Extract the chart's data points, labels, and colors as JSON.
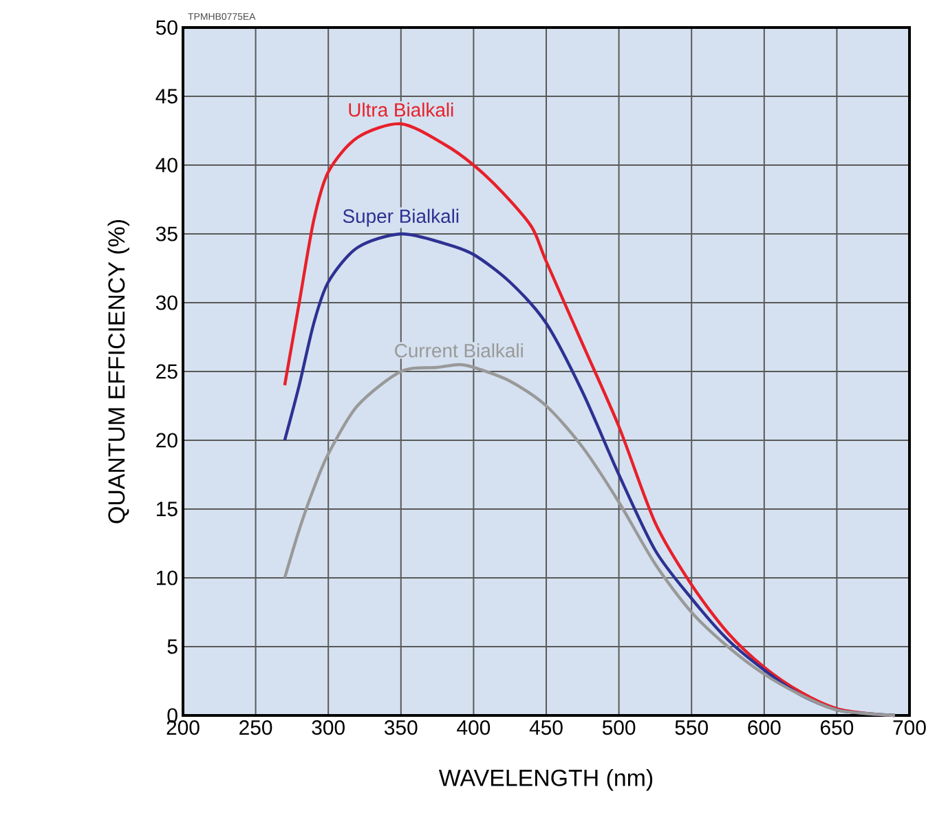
{
  "chart_data": {
    "type": "line",
    "xlabel": "WAVELENGTH (nm)",
    "ylabel": "QUANTUM EFFICIENCY (%)",
    "annotations": [
      "TPMHB0775EA"
    ],
    "xlim": [
      200,
      700
    ],
    "ylim": [
      0,
      50
    ],
    "xticks": [
      200,
      250,
      300,
      350,
      400,
      450,
      500,
      550,
      600,
      650,
      700
    ],
    "yticks": [
      0,
      5,
      10,
      15,
      20,
      25,
      30,
      35,
      40,
      45,
      50
    ],
    "grid": true,
    "marker": "none",
    "line_style": "solid",
    "series": [
      {
        "name": "Ultra Bialkali",
        "color": "#e8202a",
        "x": [
          270,
          280,
          290,
          300,
          320,
          350,
          380,
          400,
          420,
          440,
          450,
          475,
          500,
          525,
          550,
          575,
          600,
          625,
          650,
          675,
          690
        ],
        "values": [
          24,
          30,
          36,
          39.5,
          42,
          43,
          41.5,
          40,
          38,
          35.5,
          33,
          27,
          21,
          14,
          9.5,
          6,
          3.5,
          1.7,
          0.5,
          0.1,
          0
        ]
      },
      {
        "name": "Super Bialkali",
        "color": "#2e3192",
        "x": [
          270,
          280,
          290,
          300,
          320,
          350,
          380,
          400,
          425,
          450,
          475,
          500,
          525,
          550,
          575,
          600,
          625,
          650,
          675,
          690
        ],
        "values": [
          20,
          24,
          28.5,
          31.5,
          34,
          35,
          34.3,
          33.5,
          31.5,
          28.5,
          23.5,
          17.5,
          12,
          8.5,
          5.5,
          3.3,
          1.5,
          0.4,
          0.1,
          0
        ]
      },
      {
        "name": "Current Bialkali",
        "color": "#999999",
        "x": [
          270,
          280,
          290,
          300,
          320,
          350,
          375,
          390,
          400,
          425,
          450,
          475,
          500,
          525,
          550,
          575,
          600,
          625,
          650,
          675,
          690
        ],
        "values": [
          10,
          13.5,
          16.5,
          19,
          22.5,
          25,
          25.3,
          25.5,
          25.3,
          24.3,
          22.5,
          19.5,
          15.5,
          11,
          7.5,
          5,
          3,
          1.5,
          0.4,
          0.1,
          0
        ]
      }
    ]
  }
}
